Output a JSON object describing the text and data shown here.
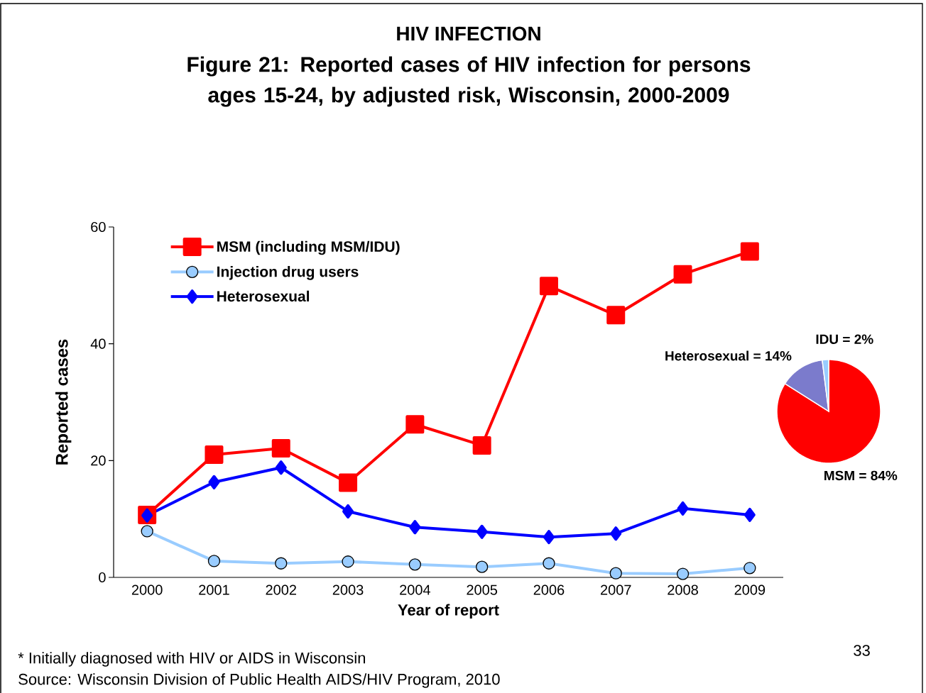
{
  "chart_data": [
    {
      "type": "line",
      "title": "HIV INFECTION",
      "subtitle": "Figure 21: Reported cases of HIV infection for persons ages 15-24, by adjusted risk, Wisconsin, 2000-2009",
      "xlabel": "Year of report",
      "ylabel": "Reported cases",
      "categories": [
        "2000",
        "2001",
        "2002",
        "2003",
        "2004",
        "2005",
        "2006",
        "2007",
        "2008",
        "2009"
      ],
      "series": [
        {
          "name": "MSM (including MSM/IDU)",
          "color": "#ff0000",
          "marker": "square",
          "values": [
            10.7,
            21.0,
            22.1,
            16.2,
            26.2,
            22.6,
            49.9,
            44.9,
            51.9,
            55.8
          ]
        },
        {
          "name": "Injection drug users",
          "color": "#99ccff",
          "marker": "circle",
          "values": [
            7.9,
            2.8,
            2.4,
            2.7,
            2.2,
            1.8,
            2.4,
            0.7,
            0.6,
            1.6
          ]
        },
        {
          "name": "Heterosexual",
          "color": "#0000ff",
          "marker": "diamond",
          "values": [
            10.6,
            16.3,
            18.8,
            11.3,
            8.6,
            7.8,
            6.9,
            7.5,
            11.8,
            10.7
          ]
        }
      ],
      "ylim": [
        0,
        60
      ],
      "yticks": [
        0,
        20,
        40,
        60
      ],
      "grid": false,
      "legend": "top left",
      "annotations": [
        "* Initially diagnosed with HIV or AIDS in Wisconsin",
        "Source:  Wisconsin Division of Public Health AIDS/HIV Program, 2010",
        "33"
      ]
    },
    {
      "type": "pie",
      "categories": [
        "MSM = 84%",
        "Heterosexual = 14%",
        "IDU = 2%"
      ],
      "values": [
        84,
        14,
        2
      ],
      "colors": [
        "#ff0000",
        "#7b7bcc",
        "#99ccff"
      ]
    }
  ]
}
